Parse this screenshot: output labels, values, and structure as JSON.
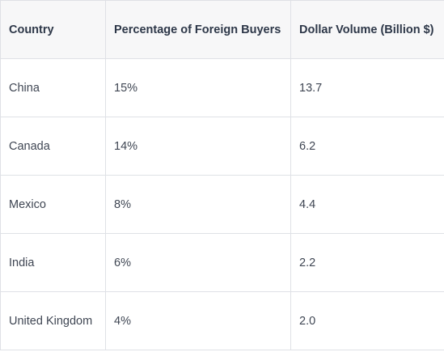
{
  "table": {
    "headers": [
      "Country",
      "Percentage of Foreign Buyers",
      "Dollar Volume (Billion $)"
    ],
    "rows": [
      [
        "China",
        "15%",
        "13.7"
      ],
      [
        "Canada",
        "14%",
        "6.2"
      ],
      [
        "Mexico",
        "8%",
        "4.4"
      ],
      [
        "India",
        "6%",
        "2.2"
      ],
      [
        "United Kingdom",
        "4%",
        "2.0"
      ]
    ]
  }
}
